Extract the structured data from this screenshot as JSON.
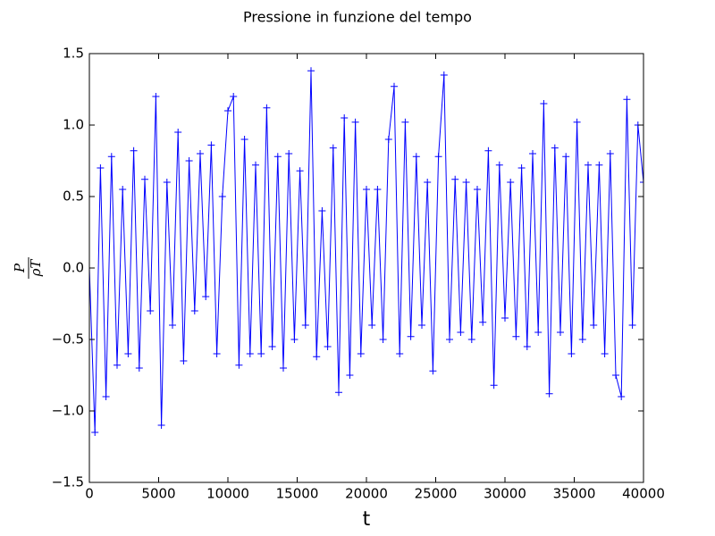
{
  "chart_data": {
    "type": "line",
    "title": "Pressione in funzione del tempo",
    "xlabel": "t",
    "ylabel": {
      "numerator": "P",
      "denominator": "ρT"
    },
    "x": [
      0,
      400,
      800,
      1200,
      1600,
      2000,
      2400,
      2800,
      3200,
      3600,
      4000,
      4400,
      4800,
      5200,
      5600,
      6000,
      6400,
      6800,
      7200,
      7600,
      8000,
      8400,
      8800,
      9200,
      9600,
      10000,
      10400,
      10800,
      11200,
      11600,
      12000,
      12400,
      12800,
      13200,
      13600,
      14000,
      14400,
      14800,
      15200,
      15600,
      16000,
      16400,
      16800,
      17200,
      17600,
      18000,
      18400,
      18800,
      19200,
      19600,
      20000,
      20400,
      20800,
      21200,
      21600,
      22000,
      22400,
      22800,
      23200,
      23600,
      24000,
      24400,
      24800,
      25200,
      25600,
      26000,
      26400,
      26800,
      27200,
      27600,
      28000,
      28400,
      28800,
      29200,
      29600,
      30000,
      30400,
      30800,
      31200,
      31600,
      32000,
      32400,
      32800,
      33200,
      33600,
      34000,
      34400,
      34800,
      35200,
      35600,
      36000,
      36400,
      36800,
      37200,
      37600,
      38000,
      38400,
      38800,
      39200,
      39600,
      40000
    ],
    "series": [
      {
        "color": "#0000ff",
        "marker": "+",
        "values": [
          0.0,
          -1.15,
          0.7,
          -0.9,
          0.78,
          -0.68,
          0.55,
          -0.6,
          0.82,
          -0.7,
          0.62,
          -0.3,
          1.2,
          -1.1,
          0.6,
          -0.4,
          0.95,
          -0.65,
          0.75,
          -0.3,
          0.8,
          -0.2,
          0.86,
          -0.6,
          0.5,
          1.1,
          1.2,
          -0.68,
          0.9,
          -0.6,
          0.72,
          -0.6,
          1.12,
          -0.55,
          0.78,
          -0.7,
          0.8,
          -0.5,
          0.68,
          -0.4,
          1.38,
          -0.62,
          0.4,
          -0.55,
          0.84,
          -0.87,
          1.05,
          -0.75,
          1.02,
          -0.6,
          0.55,
          -0.4,
          0.55,
          -0.5,
          0.9,
          1.27,
          -0.6,
          1.02,
          -0.48,
          0.78,
          -0.4,
          0.6,
          -0.72,
          0.78,
          1.35,
          -0.5,
          0.62,
          -0.45,
          0.6,
          -0.5,
          0.55,
          -0.38,
          0.82,
          -0.82,
          0.72,
          -0.35,
          0.6,
          -0.48,
          0.7,
          -0.55,
          0.8,
          -0.45,
          1.15,
          -0.88,
          0.84,
          -0.45,
          0.78,
          -0.6,
          1.02,
          -0.5,
          0.72,
          -0.4,
          0.72,
          -0.6,
          0.8,
          -0.75,
          -0.9,
          1.18,
          -0.4,
          1.0,
          0.6
        ]
      }
    ],
    "xlim": [
      0,
      40000
    ],
    "xticks": [
      0,
      5000,
      10000,
      15000,
      20000,
      25000,
      30000,
      35000,
      40000
    ],
    "ylim": [
      -1.5,
      1.5
    ],
    "yticks": [
      {
        "value": -1.5,
        "label": "−1.5"
      },
      {
        "value": -1,
        "label": "−1.0"
      },
      {
        "value": -0.5,
        "label": "−0.5"
      },
      {
        "value": 0,
        "label": "0.0"
      },
      {
        "value": 0.5,
        "label": "0.5"
      },
      {
        "value": 1,
        "label": "1.0"
      },
      {
        "value": 1.5,
        "label": "1.5"
      }
    ],
    "grid": false
  }
}
